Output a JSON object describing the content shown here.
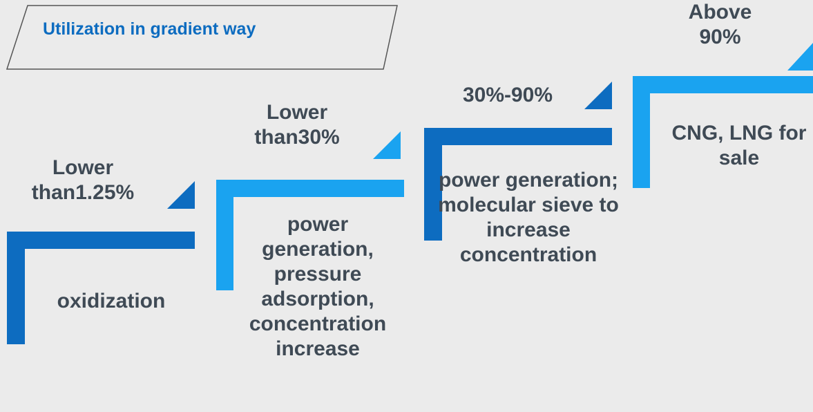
{
  "title": "Utilization in gradient way",
  "steps": [
    {
      "level": "Lower than1.25%",
      "use": "oxidization"
    },
    {
      "level": "Lower than30%",
      "use": "power generation, pressure adsorption, concentration increase"
    },
    {
      "level": "30%-90%",
      "use": "power generation; molecular sieve to increase concentration"
    },
    {
      "level": "Above 90%",
      "use": "CNG, LNG for sale"
    }
  ]
}
